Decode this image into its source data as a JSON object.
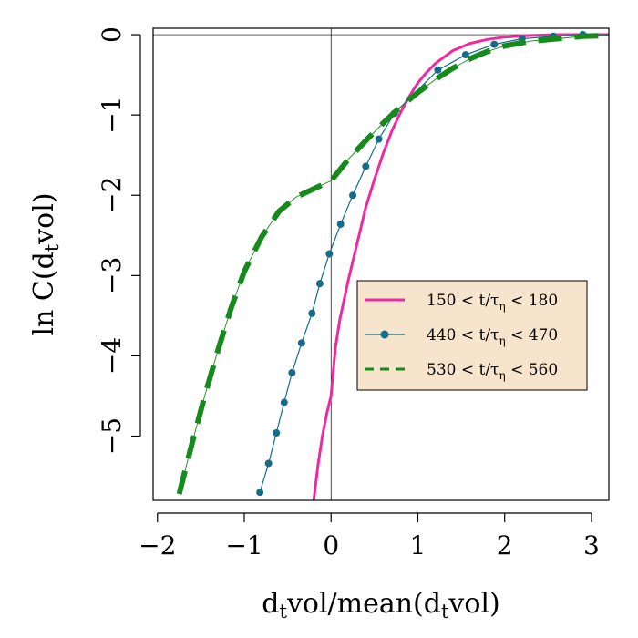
{
  "chart_data": {
    "type": "line",
    "xlabel": {
      "pre": "d",
      "sub": "t",
      "post": "vol/mean(d",
      "sub2": "t",
      "post2": "vol)"
    },
    "ylabel": {
      "pre": "ln C(d",
      "sub": "t",
      "post": "vol)"
    },
    "xlim": [
      -2.05,
      3.2
    ],
    "ylim": [
      -5.8,
      0.08
    ],
    "x_ticks": [
      -2,
      -1,
      0,
      1,
      2,
      3
    ],
    "x_tick_labels": [
      "−2",
      "−1",
      "0",
      "1",
      "2",
      "3"
    ],
    "y_ticks": [
      0,
      -1,
      -2,
      -3,
      -4,
      -5
    ],
    "y_tick_labels": [
      "0",
      "−1",
      "−2",
      "−3",
      "−4",
      "−5"
    ],
    "reference_lines": {
      "x": 0,
      "y": 0
    },
    "legend_position": "center-right",
    "legend_background": "#f7e4cc",
    "series": [
      {
        "name": {
          "pre": "150 < t/τ",
          "sub": "η",
          "post": " < 180"
        },
        "color": "#ee2aa0",
        "style": "solid",
        "points": [
          [
            -0.2,
            -5.8
          ],
          [
            -0.15,
            -5.35
          ],
          [
            -0.1,
            -5.0
          ],
          [
            -0.05,
            -4.72
          ],
          [
            0.0,
            -4.5
          ],
          [
            0.05,
            -3.9
          ],
          [
            0.1,
            -3.55
          ],
          [
            0.2,
            -3.05
          ],
          [
            0.3,
            -2.6
          ],
          [
            0.4,
            -2.15
          ],
          [
            0.5,
            -1.8
          ],
          [
            0.6,
            -1.48
          ],
          [
            0.7,
            -1.2
          ],
          [
            0.8,
            -0.97
          ],
          [
            0.9,
            -0.77
          ],
          [
            1.0,
            -0.6
          ],
          [
            1.1,
            -0.47
          ],
          [
            1.2,
            -0.36
          ],
          [
            1.4,
            -0.2
          ],
          [
            1.6,
            -0.11
          ],
          [
            1.8,
            -0.06
          ],
          [
            2.0,
            -0.03
          ],
          [
            2.3,
            -0.01
          ],
          [
            2.6,
            0.0
          ],
          [
            3.2,
            0.0
          ]
        ]
      },
      {
        "name": {
          "pre": "440 < t/τ",
          "sub": "η",
          "post": " < 470"
        },
        "color": "#146c8a",
        "style": "line-points",
        "points": [
          [
            -0.82,
            -5.7
          ],
          [
            -0.72,
            -5.34
          ],
          [
            -0.63,
            -4.96
          ],
          [
            -0.54,
            -4.58
          ],
          [
            -0.45,
            -4.21
          ],
          [
            -0.34,
            -3.84
          ],
          [
            -0.22,
            -3.47
          ],
          [
            -0.13,
            -3.1
          ],
          [
            -0.02,
            -2.73
          ],
          [
            0.11,
            -2.36
          ],
          [
            0.25,
            -2.0
          ],
          [
            0.4,
            -1.64
          ],
          [
            0.55,
            -1.3
          ],
          [
            0.73,
            -0.98
          ],
          [
            1.23,
            -0.44
          ],
          [
            1.55,
            -0.25
          ],
          [
            1.88,
            -0.12
          ],
          [
            2.2,
            -0.05
          ],
          [
            2.56,
            -0.02
          ],
          [
            2.9,
            0.0
          ],
          [
            3.2,
            0.0
          ]
        ]
      },
      {
        "name": {
          "pre": "530 < t/τ",
          "sub": "η",
          "post": " < 560"
        },
        "color": "#168a1c",
        "style": "dashed",
        "points": [
          [
            -1.75,
            -5.72
          ],
          [
            -1.6,
            -5.08
          ],
          [
            -1.45,
            -4.48
          ],
          [
            -1.3,
            -3.92
          ],
          [
            -1.15,
            -3.4
          ],
          [
            -1.0,
            -2.95
          ],
          [
            -0.8,
            -2.52
          ],
          [
            -0.6,
            -2.2
          ],
          [
            -0.4,
            -2.02
          ],
          [
            -0.2,
            -1.92
          ],
          [
            0.0,
            -1.82
          ],
          [
            0.2,
            -1.55
          ],
          [
            0.4,
            -1.32
          ],
          [
            0.6,
            -1.1
          ],
          [
            0.8,
            -0.9
          ],
          [
            1.0,
            -0.72
          ],
          [
            1.2,
            -0.56
          ],
          [
            1.4,
            -0.42
          ],
          [
            1.6,
            -0.3
          ],
          [
            1.8,
            -0.21
          ],
          [
            2.0,
            -0.14
          ],
          [
            2.3,
            -0.08
          ],
          [
            2.6,
            -0.05
          ],
          [
            2.9,
            -0.02
          ],
          [
            3.2,
            -0.01
          ]
        ]
      }
    ]
  }
}
